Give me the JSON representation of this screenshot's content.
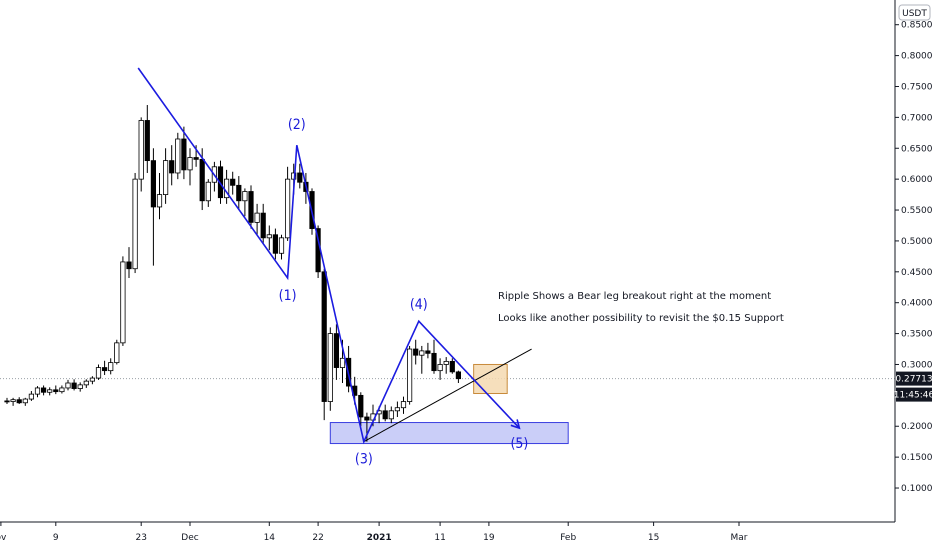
{
  "currency_badge": "USDT",
  "price_label": "0.27713",
  "time_label": "11:45:46",
  "colors": {
    "axis_line": "#131722",
    "wave": "#1c1ce0",
    "support_fill": "#b8bdf6",
    "support_stroke": "#3a3ee0",
    "box_fill": "#f5d9b0",
    "box_stroke": "#c88a3a",
    "candle_up_fill": "#ffffff",
    "candle_down_fill": "#000000",
    "price_line": "#9aa0a6",
    "badge_bg": "#131722",
    "badge_text": "#ffffff"
  },
  "annotations": [
    "Ripple Shows a Bear leg breakout right at the moment",
    "Looks like another possibility to revisit the $0.15 Support"
  ],
  "chart_data": {
    "type": "candlestick",
    "y_axis_ticks": [
      "0.85000",
      "0.80000",
      "0.75000",
      "0.70000",
      "0.65000",
      "0.60000",
      "0.55000",
      "0.50000",
      "0.45000",
      "0.40000",
      "0.35000",
      "0.30000",
      "0.25000",
      "0.20000",
      "0.15000",
      "0.10000"
    ],
    "y_axis_values": [
      0.85,
      0.8,
      0.75,
      0.7,
      0.65,
      0.6,
      0.55,
      0.5,
      0.45,
      0.4,
      0.35,
      0.3,
      0.25,
      0.2,
      0.15,
      0.1
    ],
    "ylim": [
      0.045,
      0.89
    ],
    "x_axis_ticks": [
      {
        "label": "ov",
        "day": -1
      },
      {
        "label": "9",
        "day": 8
      },
      {
        "label": "23",
        "day": 22
      },
      {
        "label": "Dec",
        "day": 30
      },
      {
        "label": "14",
        "day": 43
      },
      {
        "label": "22",
        "day": 51
      },
      {
        "label": "2021",
        "day": 61,
        "bold": true
      },
      {
        "label": "11",
        "day": 71
      },
      {
        "label": "19",
        "day": 79
      },
      {
        "label": "Feb",
        "day": 92
      },
      {
        "label": "15",
        "day": 106
      },
      {
        "label": "Mar",
        "day": 120
      }
    ],
    "candles": [
      {
        "o": 0.241,
        "h": 0.246,
        "l": 0.236,
        "c": 0.24
      },
      {
        "o": 0.24,
        "h": 0.246,
        "l": 0.233,
        "c": 0.243
      },
      {
        "o": 0.243,
        "h": 0.247,
        "l": 0.236,
        "c": 0.238
      },
      {
        "o": 0.238,
        "h": 0.246,
        "l": 0.233,
        "c": 0.244
      },
      {
        "o": 0.244,
        "h": 0.257,
        "l": 0.241,
        "c": 0.252
      },
      {
        "o": 0.252,
        "h": 0.265,
        "l": 0.247,
        "c": 0.262
      },
      {
        "o": 0.262,
        "h": 0.266,
        "l": 0.25,
        "c": 0.255
      },
      {
        "o": 0.255,
        "h": 0.263,
        "l": 0.25,
        "c": 0.259
      },
      {
        "o": 0.259,
        "h": 0.266,
        "l": 0.252,
        "c": 0.256
      },
      {
        "o": 0.256,
        "h": 0.266,
        "l": 0.253,
        "c": 0.262
      },
      {
        "o": 0.262,
        "h": 0.275,
        "l": 0.258,
        "c": 0.27
      },
      {
        "o": 0.27,
        "h": 0.276,
        "l": 0.258,
        "c": 0.261
      },
      {
        "o": 0.261,
        "h": 0.271,
        "l": 0.256,
        "c": 0.267
      },
      {
        "o": 0.267,
        "h": 0.276,
        "l": 0.262,
        "c": 0.273
      },
      {
        "o": 0.273,
        "h": 0.281,
        "l": 0.268,
        "c": 0.278
      },
      {
        "o": 0.278,
        "h": 0.3,
        "l": 0.275,
        "c": 0.295
      },
      {
        "o": 0.295,
        "h": 0.306,
        "l": 0.283,
        "c": 0.29
      },
      {
        "o": 0.29,
        "h": 0.31,
        "l": 0.284,
        "c": 0.303
      },
      {
        "o": 0.303,
        "h": 0.34,
        "l": 0.3,
        "c": 0.335
      },
      {
        "o": 0.335,
        "h": 0.475,
        "l": 0.33,
        "c": 0.466
      },
      {
        "o": 0.466,
        "h": 0.49,
        "l": 0.44,
        "c": 0.455
      },
      {
        "o": 0.455,
        "h": 0.61,
        "l": 0.448,
        "c": 0.6
      },
      {
        "o": 0.6,
        "h": 0.7,
        "l": 0.58,
        "c": 0.695
      },
      {
        "o": 0.695,
        "h": 0.72,
        "l": 0.61,
        "c": 0.63
      },
      {
        "o": 0.63,
        "h": 0.65,
        "l": 0.46,
        "c": 0.555
      },
      {
        "o": 0.555,
        "h": 0.61,
        "l": 0.535,
        "c": 0.575
      },
      {
        "o": 0.575,
        "h": 0.65,
        "l": 0.56,
        "c": 0.63
      },
      {
        "o": 0.63,
        "h": 0.655,
        "l": 0.59,
        "c": 0.61
      },
      {
        "o": 0.61,
        "h": 0.675,
        "l": 0.6,
        "c": 0.665
      },
      {
        "o": 0.665,
        "h": 0.685,
        "l": 0.6,
        "c": 0.615
      },
      {
        "o": 0.615,
        "h": 0.65,
        "l": 0.59,
        "c": 0.635
      },
      {
        "o": 0.635,
        "h": 0.655,
        "l": 0.62,
        "c": 0.632
      },
      {
        "o": 0.632,
        "h": 0.65,
        "l": 0.55,
        "c": 0.565
      },
      {
        "o": 0.565,
        "h": 0.6,
        "l": 0.555,
        "c": 0.595
      },
      {
        "o": 0.595,
        "h": 0.628,
        "l": 0.58,
        "c": 0.62
      },
      {
        "o": 0.62,
        "h": 0.63,
        "l": 0.56,
        "c": 0.57
      },
      {
        "o": 0.57,
        "h": 0.615,
        "l": 0.56,
        "c": 0.6
      },
      {
        "o": 0.6,
        "h": 0.612,
        "l": 0.575,
        "c": 0.59
      },
      {
        "o": 0.59,
        "h": 0.605,
        "l": 0.55,
        "c": 0.565
      },
      {
        "o": 0.565,
        "h": 0.585,
        "l": 0.54,
        "c": 0.58
      },
      {
        "o": 0.58,
        "h": 0.59,
        "l": 0.52,
        "c": 0.53
      },
      {
        "o": 0.53,
        "h": 0.56,
        "l": 0.51,
        "c": 0.545
      },
      {
        "o": 0.545,
        "h": 0.56,
        "l": 0.495,
        "c": 0.505
      },
      {
        "o": 0.505,
        "h": 0.525,
        "l": 0.485,
        "c": 0.51
      },
      {
        "o": 0.51,
        "h": 0.52,
        "l": 0.47,
        "c": 0.48
      },
      {
        "o": 0.48,
        "h": 0.51,
        "l": 0.47,
        "c": 0.505
      },
      {
        "o": 0.505,
        "h": 0.62,
        "l": 0.5,
        "c": 0.6
      },
      {
        "o": 0.6,
        "h": 0.625,
        "l": 0.575,
        "c": 0.61
      },
      {
        "o": 0.61,
        "h": 0.625,
        "l": 0.585,
        "c": 0.595
      },
      {
        "o": 0.595,
        "h": 0.61,
        "l": 0.56,
        "c": 0.58
      },
      {
        "o": 0.58,
        "h": 0.585,
        "l": 0.51,
        "c": 0.52
      },
      {
        "o": 0.52,
        "h": 0.525,
        "l": 0.44,
        "c": 0.45
      },
      {
        "o": 0.45,
        "h": 0.455,
        "l": 0.21,
        "c": 0.24
      },
      {
        "o": 0.24,
        "h": 0.36,
        "l": 0.225,
        "c": 0.35
      },
      {
        "o": 0.35,
        "h": 0.365,
        "l": 0.275,
        "c": 0.295
      },
      {
        "o": 0.295,
        "h": 0.34,
        "l": 0.27,
        "c": 0.31
      },
      {
        "o": 0.31,
        "h": 0.33,
        "l": 0.255,
        "c": 0.265
      },
      {
        "o": 0.265,
        "h": 0.28,
        "l": 0.235,
        "c": 0.25
      },
      {
        "o": 0.25,
        "h": 0.255,
        "l": 0.2,
        "c": 0.215
      },
      {
        "o": 0.215,
        "h": 0.222,
        "l": 0.175,
        "c": 0.21
      },
      {
        "o": 0.21,
        "h": 0.235,
        "l": 0.2,
        "c": 0.22
      },
      {
        "o": 0.22,
        "h": 0.232,
        "l": 0.205,
        "c": 0.225
      },
      {
        "o": 0.225,
        "h": 0.235,
        "l": 0.208,
        "c": 0.212
      },
      {
        "o": 0.212,
        "h": 0.232,
        "l": 0.205,
        "c": 0.225
      },
      {
        "o": 0.225,
        "h": 0.24,
        "l": 0.215,
        "c": 0.23
      },
      {
        "o": 0.23,
        "h": 0.248,
        "l": 0.22,
        "c": 0.24
      },
      {
        "o": 0.24,
        "h": 0.33,
        "l": 0.235,
        "c": 0.325
      },
      {
        "o": 0.325,
        "h": 0.34,
        "l": 0.3,
        "c": 0.315
      },
      {
        "o": 0.315,
        "h": 0.33,
        "l": 0.285,
        "c": 0.322
      },
      {
        "o": 0.322,
        "h": 0.335,
        "l": 0.31,
        "c": 0.318
      },
      {
        "o": 0.318,
        "h": 0.34,
        "l": 0.285,
        "c": 0.29
      },
      {
        "o": 0.29,
        "h": 0.31,
        "l": 0.275,
        "c": 0.3
      },
      {
        "o": 0.3,
        "h": 0.312,
        "l": 0.285,
        "c": 0.305
      },
      {
        "o": 0.305,
        "h": 0.31,
        "l": 0.285,
        "c": 0.288
      },
      {
        "o": 0.288,
        "h": 0.29,
        "l": 0.27,
        "c": 0.277
      }
    ],
    "wave_points": [
      {
        "label": "",
        "day": 21.5,
        "y": 0.78
      },
      {
        "label": "(1)",
        "day": 46,
        "y": 0.44
      },
      {
        "label": "(2)",
        "day": 47.5,
        "y": 0.655
      },
      {
        "label": "(3)",
        "day": 58.5,
        "y": 0.175
      },
      {
        "label": "(4)",
        "day": 67.5,
        "y": 0.37
      },
      {
        "label": "(5)",
        "day": 84,
        "y": 0.197
      }
    ],
    "trendline": [
      {
        "day": 58.5,
        "y": 0.175
      },
      {
        "day": 86,
        "y": 0.325
      }
    ],
    "support_zone": {
      "day_start": 53,
      "day_end": 92,
      "y_low": 0.172,
      "y_high": 0.206
    },
    "consolidation_box": {
      "day_start": 76.5,
      "day_end": 82,
      "y_low": 0.253,
      "y_high": 0.3
    },
    "current_price": 0.27713
  }
}
